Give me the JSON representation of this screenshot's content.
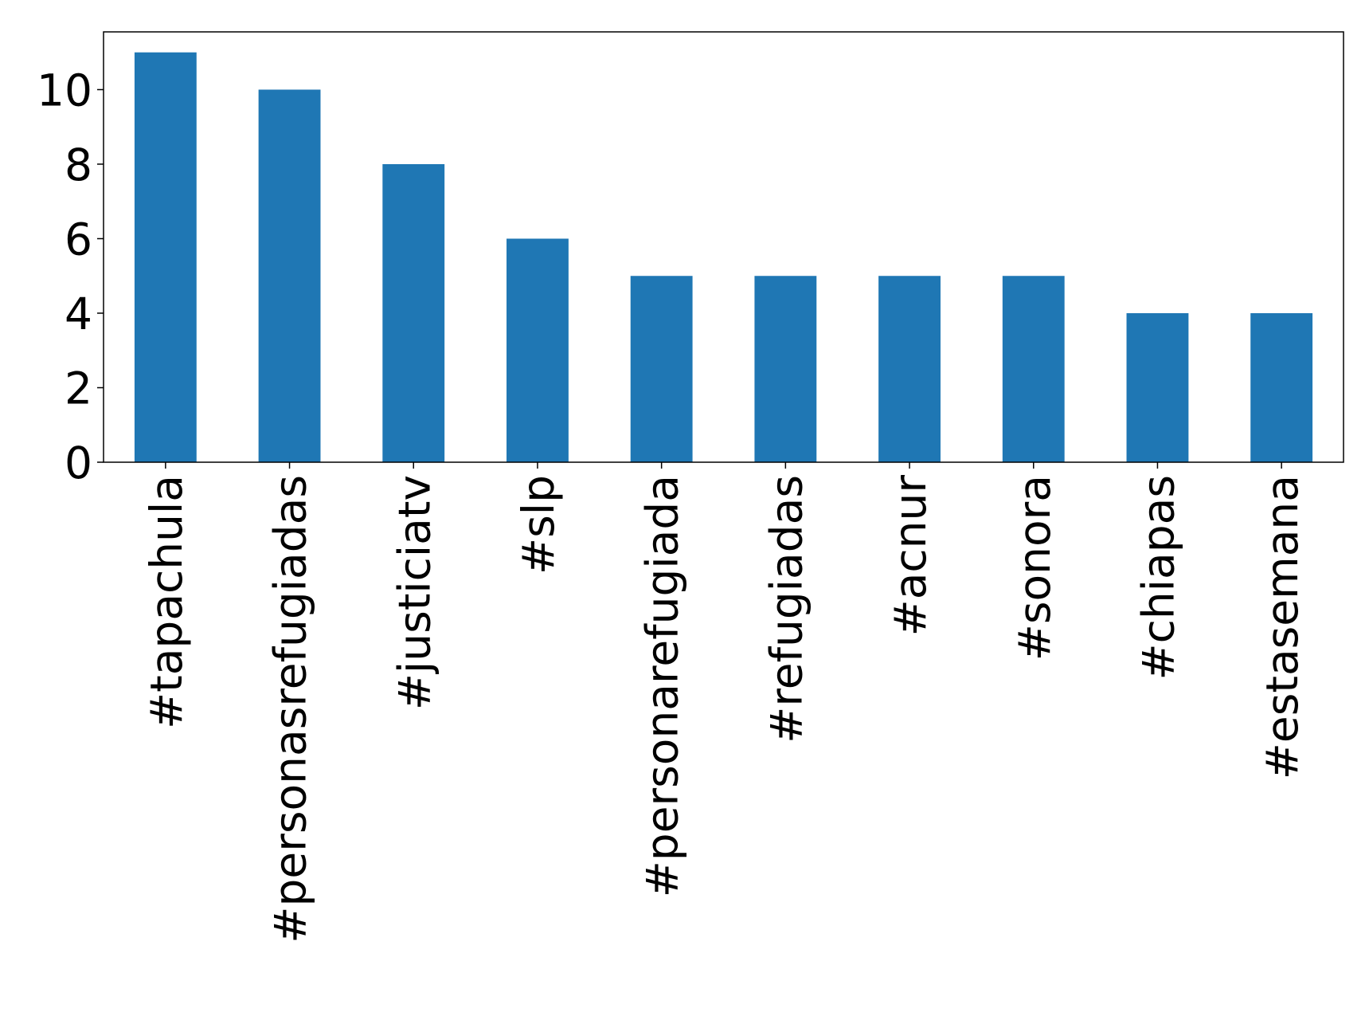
{
  "chart_data": {
    "type": "bar",
    "categories": [
      "#tapachula",
      "#personasrefugiadas",
      "#justiciatv",
      "#slp",
      "#personarefugiada",
      "#refugiadas",
      "#acnur",
      "#sonora",
      "#chiapas",
      "#estasemana"
    ],
    "values": [
      11,
      10,
      8,
      6,
      5,
      5,
      5,
      5,
      4,
      4
    ],
    "color": "#1f77b4",
    "ylim": [
      0,
      11.55
    ],
    "yticks": [
      0,
      2,
      4,
      6,
      8,
      10
    ],
    "grid": false
  }
}
